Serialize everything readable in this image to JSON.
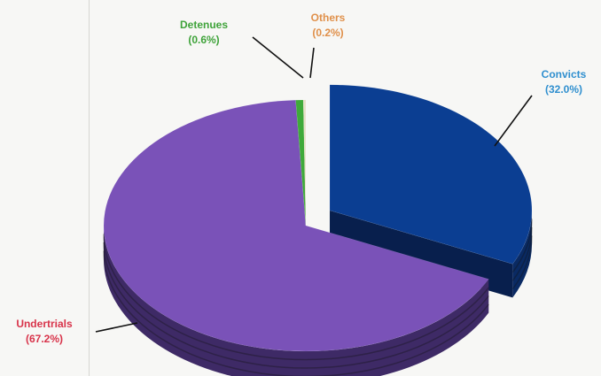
{
  "chart_data": {
    "type": "pie",
    "title": "",
    "slices": [
      {
        "label": "Convicts",
        "pct_label": "(32.0%)",
        "value": 32.0,
        "color": "#0b3e92",
        "side": "#0a2a63",
        "text_color": "#2f8fcf"
      },
      {
        "label": "Undertrials",
        "pct_label": "(67.2%)",
        "value": 67.2,
        "color": "#7a52b8",
        "side": "#3e2a66",
        "text_color": "#d8334a"
      },
      {
        "label": "Detenues",
        "pct_label": "(0.6%)",
        "value": 0.6,
        "color": "#3faa3a",
        "side": "#256b22",
        "text_color": "#3fa33a"
      },
      {
        "label": "Others",
        "pct_label": "(0.2%)",
        "value": 0.2,
        "color": "#e8e0c8",
        "side": "#b8ad90",
        "text_color": "#e0904a"
      }
    ],
    "exploded": [
      "Convicts"
    ],
    "style": "3d-exploded"
  }
}
